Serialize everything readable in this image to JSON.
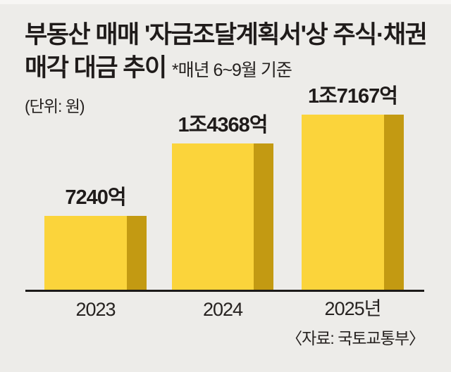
{
  "header": {
    "title_line1": "부동산 매매 '자금조달계획서'상 주식·채권",
    "title_line2": "매각 대금 추이 ",
    "note": "*매년 6~9월 기준",
    "unit": "(단위: 원)"
  },
  "chart_data": {
    "type": "bar",
    "title": "부동산 매매 '자금조달계획서'상 주식·채권 매각 대금 추이",
    "subtitle": "*매년 6~9월 기준",
    "xlabel": "",
    "ylabel": "원",
    "categories": [
      "2023",
      "2024",
      "2025년"
    ],
    "values": [
      7240,
      14368,
      17167
    ],
    "value_unit": "억 원",
    "value_labels": [
      "7240억",
      "1조4368억",
      "1조7167억"
    ],
    "ylim": [
      0,
      17500
    ],
    "grid": false,
    "legend": "none",
    "bar_face_color": "#fbd43b",
    "bar_side_color": "#c39a12",
    "background_color": "#edece9"
  },
  "footer": {
    "source": "〈자료: 국토교통부〉"
  }
}
